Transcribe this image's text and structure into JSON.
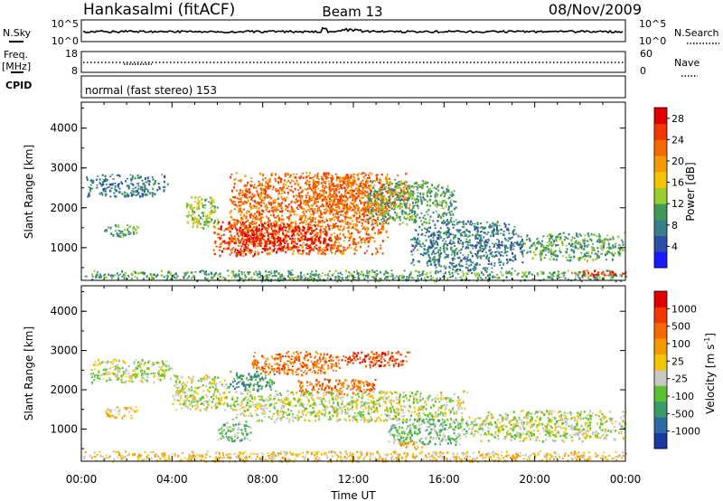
{
  "header": {
    "station": "Hankasalmi (fitACF)",
    "beam": "Beam 13",
    "date": "08/Nov/2009"
  },
  "status_panels": {
    "nsky_label": "N.Sky",
    "nsearch_label": "N.Search",
    "freq_label_1": "Freq.",
    "freq_label_2": "[MHz]",
    "nave_label": "Nave",
    "cpid_label": "CPID",
    "cpid_text": "normal (fast stereo) 153",
    "nsky_tick_top": "10^5",
    "nsky_tick_bottom": "10^0",
    "freq_tick_top": "18",
    "freq_tick_bottom": "8",
    "nave_tick_top": "60",
    "nave_tick_bottom": "0"
  },
  "chart_data": [
    {
      "type": "heatmap",
      "name": "power",
      "ylabel": "Slant Range [km]",
      "xlabel": "Time UT",
      "x_ticks": [
        "00:00",
        "04:00",
        "08:00",
        "12:00",
        "16:00",
        "20:00",
        "00:00"
      ],
      "x_range_hours": [
        0,
        24
      ],
      "y_ticks": [
        1000,
        2000,
        3000,
        4000
      ],
      "ylim": [
        180,
        4650
      ],
      "colorbar": {
        "label": "Power [dB]",
        "ticks": [
          "4",
          "8",
          "12",
          "16",
          "20",
          "24",
          "28"
        ],
        "colors": [
          "#1a1aff",
          "#2c4fa6",
          "#3a7d8c",
          "#3f9a5a",
          "#9acc2e",
          "#f5c400",
          "#f59a00",
          "#f56a00",
          "#f03800",
          "#e00000"
        ]
      },
      "regions": [
        {
          "t0": 0.2,
          "t1": 3.8,
          "r0": 2300,
          "r1": 2850,
          "level": 2
        },
        {
          "t0": 1.0,
          "t1": 2.5,
          "r0": 1300,
          "r1": 1600,
          "level": 3
        },
        {
          "t0": 4.5,
          "t1": 6.0,
          "r0": 1500,
          "r1": 2300,
          "level": 4
        },
        {
          "t0": 5.8,
          "t1": 8.0,
          "r0": 800,
          "r1": 1700,
          "level": 8
        },
        {
          "t0": 6.5,
          "t1": 13.5,
          "r0": 850,
          "r1": 2900,
          "level": 7
        },
        {
          "t0": 7.0,
          "t1": 11.0,
          "r0": 900,
          "r1": 1600,
          "level": 9
        },
        {
          "t0": 10.0,
          "t1": 14.5,
          "r0": 1900,
          "r1": 2900,
          "level": 7
        },
        {
          "t0": 12.5,
          "t1": 16.5,
          "r0": 1600,
          "r1": 2700,
          "level": 3
        },
        {
          "t0": 14.5,
          "t1": 19.5,
          "r0": 450,
          "r1": 1700,
          "level": 2
        },
        {
          "t0": 19.5,
          "t1": 24.0,
          "r0": 700,
          "r1": 1400,
          "level": 3
        },
        {
          "t0": 0.0,
          "t1": 24.0,
          "r0": 180,
          "r1": 450,
          "level": 3
        },
        {
          "t0": 21.5,
          "t1": 24.0,
          "r0": 300,
          "r1": 450,
          "level": 8
        }
      ]
    },
    {
      "type": "heatmap",
      "name": "velocity",
      "ylabel": "Slant Range [km]",
      "xlabel": "Time UT",
      "x_ticks": [
        "00:00",
        "04:00",
        "08:00",
        "12:00",
        "16:00",
        "20:00",
        "00:00"
      ],
      "x_range_hours": [
        0,
        24
      ],
      "y_ticks": [
        1000,
        2000,
        3000,
        4000
      ],
      "ylim": [
        180,
        4650
      ],
      "colorbar": {
        "label": "Velocity [m s",
        "label_sup": "-1",
        "label_end": "]",
        "ticks": [
          "1000",
          "500",
          "100",
          "25",
          "-25",
          "-100",
          "-500",
          "-1000"
        ],
        "colors": [
          "#1a3aa0",
          "#2c6aa6",
          "#3a9a6a",
          "#59c22e",
          "#c8c8c0",
          "#f5c400",
          "#f59a00",
          "#f56a00",
          "#f03800",
          "#e00000"
        ]
      },
      "regions": [
        {
          "t0": 0.3,
          "t1": 4.0,
          "r0": 2200,
          "r1": 2800,
          "level": 4
        },
        {
          "t0": 1.0,
          "t1": 2.5,
          "r0": 1300,
          "r1": 1600,
          "level": 5
        },
        {
          "t0": 4.0,
          "t1": 6.5,
          "r0": 1500,
          "r1": 2400,
          "level": 4
        },
        {
          "t0": 6.0,
          "t1": 7.5,
          "r0": 700,
          "r1": 1200,
          "level": 3
        },
        {
          "t0": 7.5,
          "t1": 11.5,
          "r0": 2400,
          "r1": 3000,
          "level": 7
        },
        {
          "t0": 6.5,
          "t1": 8.5,
          "r0": 2000,
          "r1": 2500,
          "level": 2
        },
        {
          "t0": 9.5,
          "t1": 13.0,
          "r0": 1900,
          "r1": 2300,
          "level": 7
        },
        {
          "t0": 11.5,
          "t1": 14.5,
          "r0": 2600,
          "r1": 3000,
          "level": 8
        },
        {
          "t0": 6.5,
          "t1": 17.0,
          "r0": 1200,
          "r1": 2000,
          "level": 4
        },
        {
          "t0": 13.5,
          "t1": 17.0,
          "r0": 600,
          "r1": 1300,
          "level": 3
        },
        {
          "t0": 17.0,
          "t1": 24.0,
          "r0": 700,
          "r1": 1500,
          "level": 4
        },
        {
          "t0": 14.0,
          "t1": 15.0,
          "r0": 500,
          "r1": 700,
          "level": 6
        },
        {
          "t0": 0.0,
          "t1": 24.0,
          "r0": 180,
          "r1": 450,
          "level": 5
        }
      ]
    }
  ]
}
